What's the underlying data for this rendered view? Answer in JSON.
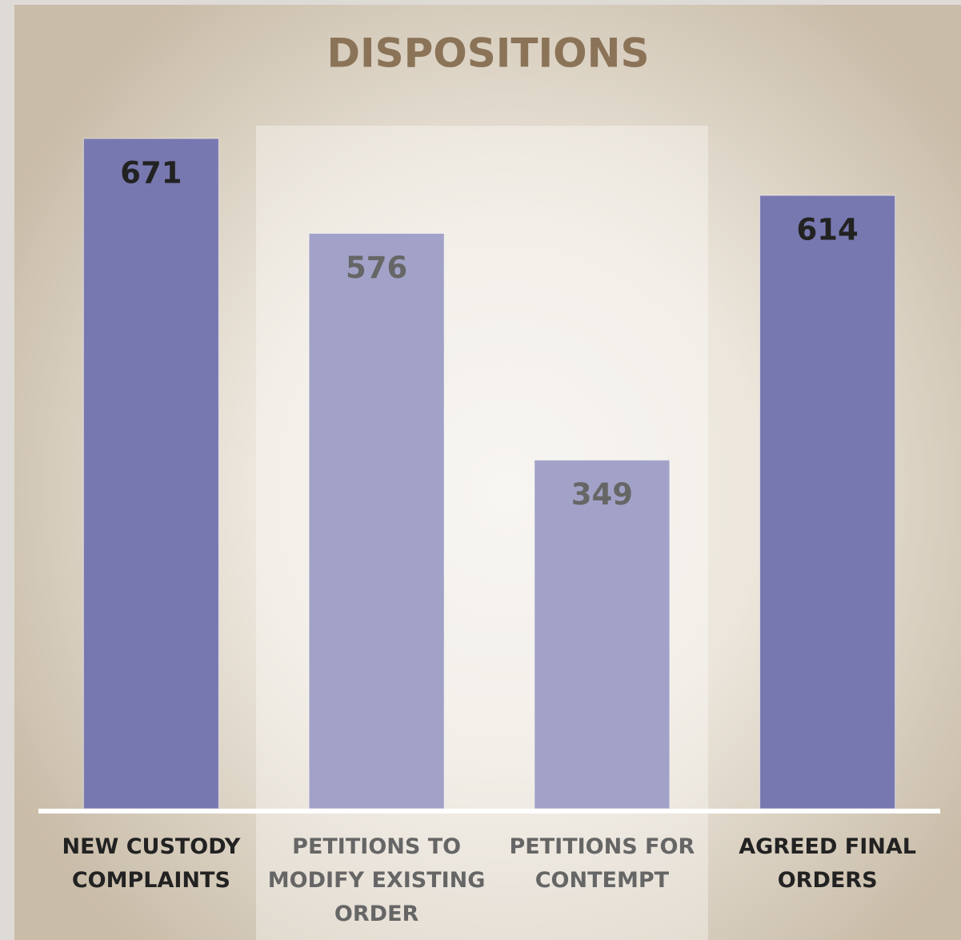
{
  "chart_data": {
    "type": "bar",
    "title": "DISPOSITIONS",
    "categories": [
      "NEW CUSTODY COMPLAINTS",
      "PETITIONS TO MODIFY EXISTING ORDER",
      "PETITIONS FOR CONTEMPT",
      "AGREED FINAL ORDERS"
    ],
    "values": [
      671,
      576,
      349,
      614
    ],
    "colors": [
      "#7878b0",
      "#a2a2c8",
      "#a2a2c8",
      "#7878b0"
    ],
    "label_colors": [
      "#222222",
      "#666666",
      "#666666",
      "#222222"
    ]
  }
}
